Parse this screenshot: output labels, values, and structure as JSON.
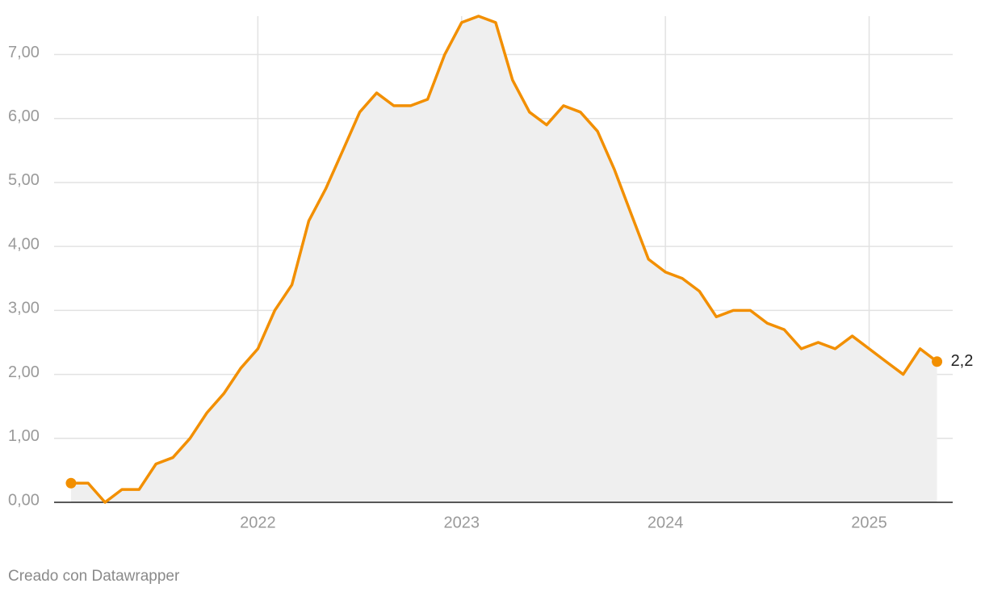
{
  "chart_data": {
    "type": "area-line",
    "x": [
      2021.083,
      2021.167,
      2021.25,
      2021.333,
      2021.417,
      2021.5,
      2021.583,
      2021.667,
      2021.75,
      2021.833,
      2021.917,
      2022,
      2022.083,
      2022.167,
      2022.25,
      2022.333,
      2022.417,
      2022.5,
      2022.583,
      2022.667,
      2022.75,
      2022.833,
      2022.917,
      2023,
      2023.083,
      2023.167,
      2023.25,
      2023.333,
      2023.417,
      2023.5,
      2023.583,
      2023.667,
      2023.75,
      2023.833,
      2023.917,
      2024,
      2024.083,
      2024.167,
      2024.25,
      2024.333,
      2024.417,
      2024.5,
      2024.583,
      2024.667,
      2024.75,
      2024.833,
      2024.917,
      2025,
      2025.083,
      2025.167,
      2025.25,
      2025.333
    ],
    "values": [
      0.3,
      0.3,
      0.0,
      0.2,
      0.2,
      0.6,
      0.7,
      1.0,
      1.4,
      1.7,
      2.1,
      2.4,
      3.0,
      3.4,
      4.4,
      4.9,
      5.5,
      6.1,
      6.4,
      6.2,
      6.2,
      6.3,
      7.0,
      7.5,
      7.6,
      7.5,
      6.6,
      6.1,
      5.9,
      6.2,
      6.1,
      5.8,
      5.2,
      4.5,
      3.8,
      3.6,
      3.5,
      3.3,
      2.9,
      3.0,
      3.0,
      2.8,
      2.7,
      2.4,
      2.5,
      2.4,
      2.6,
      2.4,
      2.2,
      2.0,
      2.4,
      2.2
    ],
    "value_labels": [
      null,
      null,
      null,
      null,
      null,
      null,
      null,
      null,
      null,
      null,
      null,
      null,
      null,
      null,
      null,
      null,
      null,
      null,
      null,
      null,
      null,
      null,
      null,
      null,
      null,
      null,
      null,
      null,
      null,
      null,
      null,
      null,
      null,
      null,
      null,
      null,
      null,
      null,
      null,
      null,
      null,
      null,
      null,
      null,
      null,
      null,
      null,
      null,
      null,
      null,
      null,
      "2,2"
    ],
    "color": "#f28f00",
    "area_color": "#efefef",
    "xlim": [
      2021,
      2025.41
    ],
    "xticks": [
      2022,
      2023,
      2024,
      2025
    ],
    "ylim": [
      0,
      7.6
    ],
    "yticks": [
      {
        "value": 0,
        "label": "0,00"
      },
      {
        "value": 1,
        "label": "1,00"
      },
      {
        "value": 2,
        "label": "2,00"
      },
      {
        "value": 3,
        "label": "3,00"
      },
      {
        "value": 4,
        "label": "4,00"
      },
      {
        "value": 5,
        "label": "5,00"
      },
      {
        "value": 6,
        "label": "6,00"
      },
      {
        "value": 7,
        "label": "7,00"
      }
    ],
    "grid": true
  },
  "footer": "Creado con Datawrapper"
}
